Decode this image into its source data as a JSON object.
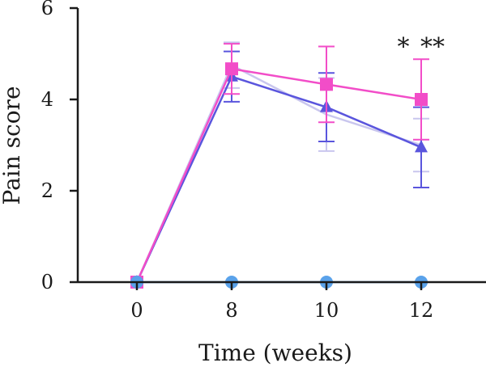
{
  "chart_data": {
    "type": "line",
    "title": "",
    "xlabel": "Time (weeks)",
    "ylabel": "Pain score",
    "categories": [
      "0",
      "8",
      "10",
      "12"
    ],
    "ylim": [
      0,
      6
    ],
    "yticks": [
      "0",
      "2",
      "4",
      "6"
    ],
    "grid": false,
    "legend": "none",
    "series": [
      {
        "color": "#f24dc8",
        "marker": "square",
        "values": [
          0,
          4.67,
          4.33,
          4.0
        ],
        "errors": [
          0,
          0.55,
          0.83,
          0.88
        ]
      },
      {
        "color": "#5a55dd",
        "marker": "triangle",
        "values": [
          0,
          4.5,
          3.83,
          2.95
        ],
        "errors": [
          0,
          0.55,
          0.75,
          0.88
        ]
      },
      {
        "color": "#c9c6ee",
        "marker": "none",
        "values": [
          0,
          4.75,
          3.67,
          3.0
        ],
        "errors": [
          0,
          0.5,
          0.8,
          0.58
        ]
      },
      {
        "color": "#5aa2ea",
        "marker": "circle",
        "values": [
          0,
          0,
          0,
          0
        ],
        "errors": [
          0,
          0,
          0,
          0
        ]
      }
    ],
    "annotations": [
      {
        "text": "*",
        "category": "12"
      },
      {
        "text": "**",
        "category": "12"
      }
    ]
  }
}
